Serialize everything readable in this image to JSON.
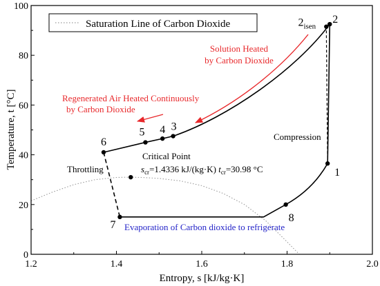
{
  "chart_data": {
    "type": "line",
    "xlabel": "Entropy, s [kJ/kg·K]",
    "ylabel": "Temperature, t [°C]",
    "xlim": [
      1.2,
      2.0
    ],
    "ylim": [
      0,
      100
    ],
    "xticks": [
      1.2,
      1.4,
      1.6,
      1.8,
      2.0
    ],
    "yticks": [
      0,
      20,
      40,
      60,
      80,
      100
    ],
    "xtick_labels": [
      "1.2",
      "1.4",
      "1.6",
      "1.8",
      "2.0"
    ],
    "ytick_labels": [
      "0",
      "20",
      "40",
      "60",
      "80",
      "100"
    ],
    "grid": false,
    "legend": {
      "placement": "top-left",
      "entries": [
        {
          "label": "Saturation Line of Carbon Dioxide",
          "style": "dotted",
          "color": "#999999"
        }
      ]
    },
    "saturation_line": {
      "x": [
        1.2,
        1.25,
        1.3,
        1.35,
        1.4,
        1.43,
        1.46,
        1.5,
        1.55,
        1.6,
        1.65,
        1.7,
        1.75,
        1.8,
        1.84
      ],
      "y": [
        21.5,
        25.0,
        28.0,
        30.0,
        30.9,
        31.0,
        30.9,
        30.5,
        29.5,
        27.6,
        24.5,
        20.0,
        13.5,
        5.0,
        -2.0
      ]
    },
    "state_points": [
      {
        "label": "1",
        "s": 1.895,
        "t": 36.5
      },
      {
        "label": "2",
        "s": 1.9,
        "t": 92.5
      },
      {
        "label": "2isen",
        "s": 1.892,
        "t": 91.5
      },
      {
        "label": "3",
        "s": 1.533,
        "t": 47.5
      },
      {
        "label": "4",
        "s": 1.508,
        "t": 46.5
      },
      {
        "label": "5",
        "s": 1.468,
        "t": 45.0
      },
      {
        "label": "6",
        "s": 1.37,
        "t": 41.0
      },
      {
        "label": "7",
        "s": 1.408,
        "t": 15.0
      },
      {
        "label": "8",
        "s": 1.797,
        "t": 20.0
      }
    ],
    "critical_point": {
      "s": 1.4336,
      "t": 30.98
    },
    "annotations": {
      "solution_heated": [
        "Solution Heated",
        "by Carbon Dioxide"
      ],
      "regenerated": [
        "Regenerated Air Heated Continuously",
        "by Carbon Dioxide"
      ],
      "compression": "Compression",
      "throttling": "Throttling",
      "critical_title": "Critical Point",
      "critical_s_main": "s",
      "critical_s_sub": "cr",
      "critical_s_value": "=1.4336 kJ/(kg·K)",
      "critical_t_main": "t",
      "critical_t_sub": "cr",
      "critical_t_value": "=30.98 °C",
      "evaporation": "Evaporation of Carbon dioxide to refrigerate"
    },
    "colors": {
      "red_text": "#e8282b",
      "blue_text": "#2424c8",
      "cycle": "#000000",
      "saturation": "#999999"
    }
  }
}
